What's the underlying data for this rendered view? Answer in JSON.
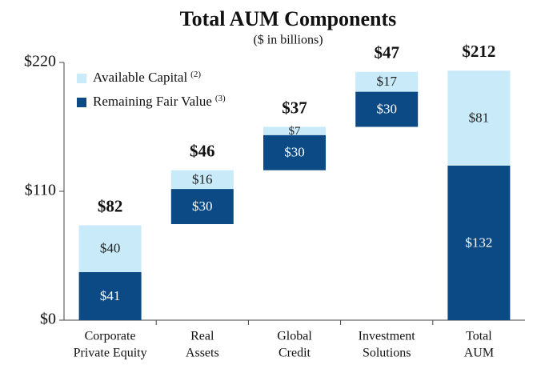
{
  "chart_data": {
    "type": "waterfall",
    "title": "Total AUM Components",
    "subtitle": "($ in billions)",
    "categories": [
      [
        "Corporate",
        "Private Equity"
      ],
      [
        "Real",
        "Assets"
      ],
      [
        "Global",
        "Credit"
      ],
      [
        "Investment",
        "Solutions"
      ],
      [
        "Total",
        "AUM"
      ]
    ],
    "is_total": [
      false,
      false,
      false,
      false,
      true
    ],
    "series": [
      {
        "name": "Remaining Fair Value",
        "note": "(3)",
        "color": "#0b4a84",
        "label_color": "#ffffff",
        "values": [
          41,
          30,
          30,
          30,
          132
        ],
        "value_labels": [
          "$41",
          "$30",
          "$30",
          "$30",
          "$132"
        ]
      },
      {
        "name": "Available Capital",
        "note": "(2)",
        "color": "#c8eaf9",
        "label_color": "#222222",
        "values": [
          40,
          16,
          7,
          17,
          81
        ],
        "value_labels": [
          "$40",
          "$16",
          "$7",
          "$17",
          "$81"
        ]
      }
    ],
    "totals": {
      "values": [
        82,
        46,
        37,
        47,
        212
      ],
      "value_labels": [
        "$82",
        "$46",
        "$37",
        "$47",
        "$212"
      ]
    },
    "legend_order": [
      1,
      0
    ],
    "legend": "upper left",
    "ylim": [
      0,
      220
    ],
    "yticks": [
      {
        "value": 0,
        "label": "$0"
      },
      {
        "value": 110,
        "label": "$110"
      },
      {
        "value": 220,
        "label": "$220"
      }
    ]
  }
}
